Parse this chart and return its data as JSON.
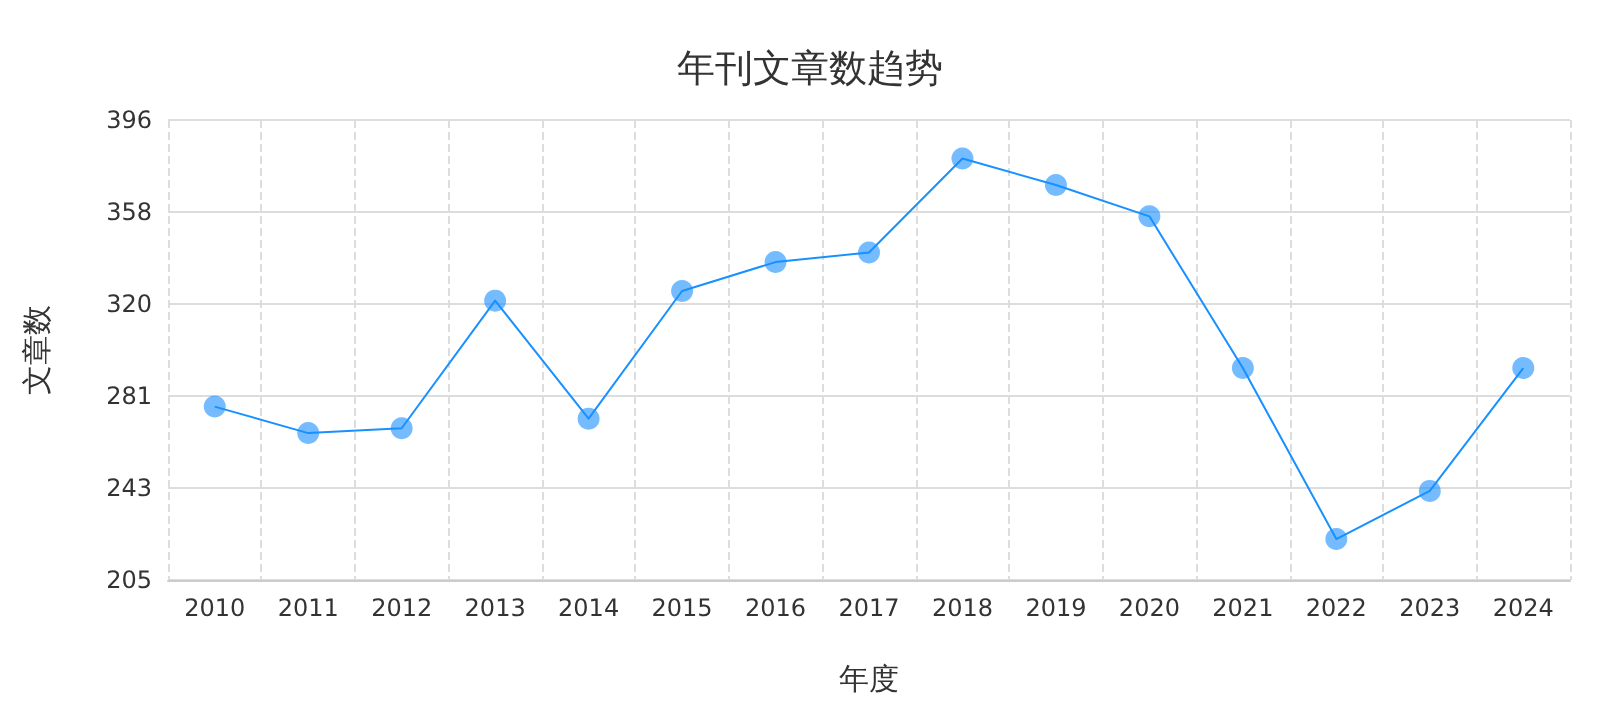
{
  "chart_data": {
    "type": "line",
    "title": "年刊文章数趋势",
    "xlabel": "年度",
    "ylabel": "文章数",
    "categories": [
      "2010",
      "2011",
      "2012",
      "2013",
      "2014",
      "2015",
      "2016",
      "2017",
      "2018",
      "2019",
      "2020",
      "2021",
      "2022",
      "2023",
      "2024"
    ],
    "series": [
      {
        "color": "#1890ff",
        "values": [
          277,
          266,
          268,
          321,
          272,
          325,
          337,
          341,
          380,
          369,
          356,
          293,
          222,
          242,
          293
        ]
      }
    ],
    "ylim": [
      205,
      396
    ],
    "yticks": [
      {
        "value": 205,
        "label": "205"
      },
      {
        "value": 243.2,
        "label": "243"
      },
      {
        "value": 281.4,
        "label": "281"
      },
      {
        "value": 319.6,
        "label": "320"
      },
      {
        "value": 357.8,
        "label": "358"
      },
      {
        "value": 396,
        "label": "396"
      }
    ],
    "grid": true,
    "marker": "circle",
    "line_style": "solid"
  }
}
